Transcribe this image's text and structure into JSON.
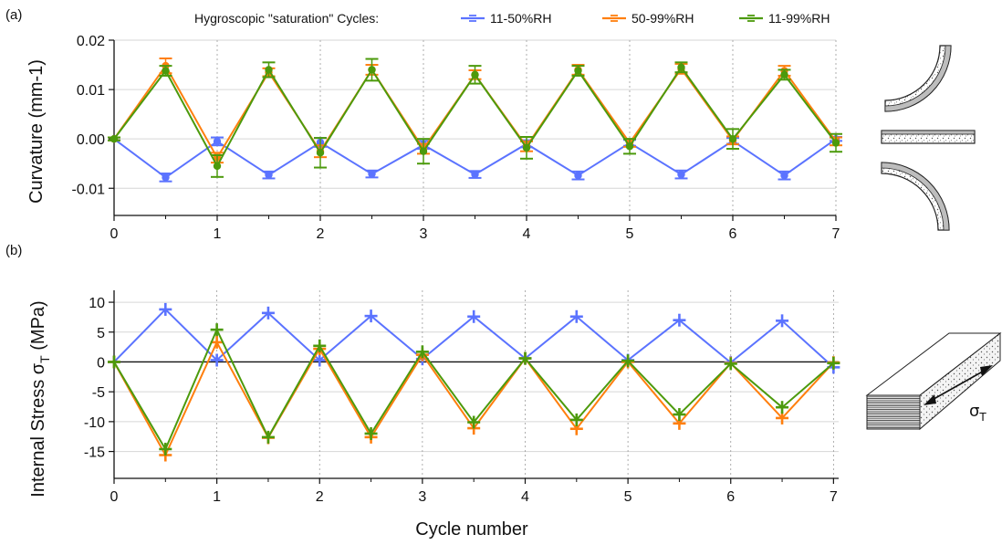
{
  "figure": {
    "panel_a_label": "(a)",
    "panel_b_label": "(b)",
    "legend_title": "Hygroscopic \"saturation\" Cycles:",
    "schematic_b_label": "σ",
    "schematic_b_subscript": "T"
  },
  "colors": {
    "11-50%RH": "#5b73ff",
    "50-99%RH": "#ff7f0e",
    "11-99%RH": "#4c9a0c"
  },
  "chart_data": [
    {
      "type": "line",
      "panel": "a",
      "xlabel": "Cycle number",
      "ylabel": "Curvature (mm-1)",
      "xlim": [
        0,
        7
      ],
      "ylim": [
        -0.0155,
        0.02
      ],
      "xticks": [
        "0",
        "1",
        "2",
        "3",
        "4",
        "5",
        "6",
        "7"
      ],
      "yticks": [
        "0.02",
        "0.01",
        "0.00",
        "-0.01"
      ],
      "ytick_values": [
        0.02,
        0.01,
        0.0,
        -0.01
      ],
      "grid": "vertical dotted at integer cycles, horizontal at y ticks",
      "legend": "top",
      "x": [
        0,
        0.5,
        1,
        1.5,
        2,
        2.5,
        3,
        3.5,
        4,
        4.5,
        5,
        5.5,
        6,
        6.5,
        7
      ],
      "series": [
        {
          "name": "11-50%RH",
          "values": [
            0,
            -0.0078,
            -0.0005,
            -0.0073,
            -0.0007,
            -0.0071,
            -0.0012,
            -0.0072,
            -0.001,
            -0.0074,
            -0.0008,
            -0.0072,
            -0.0004,
            -0.0074,
            0
          ],
          "errors": [
            0.0003,
            0.0008,
            0.0008,
            0.0007,
            0.0009,
            0.0007,
            0.0008,
            0.0007,
            0.0007,
            0.0008,
            0.0006,
            0.0008,
            0.0006,
            0.0008,
            0.0004
          ]
        },
        {
          "name": "50-99%RH",
          "values": [
            0,
            0.0148,
            -0.0038,
            0.0135,
            -0.0025,
            0.014,
            -0.002,
            0.013,
            -0.0015,
            0.014,
            -0.0008,
            0.0142,
            -0.0003,
            0.0138,
            -0.0005
          ],
          "errors": [
            0.0003,
            0.0015,
            0.001,
            0.0008,
            0.0012,
            0.001,
            0.001,
            0.0009,
            0.001,
            0.001,
            0.0008,
            0.001,
            0.0008,
            0.001,
            0.0008
          ]
        },
        {
          "name": "11-99%RH",
          "values": [
            0,
            0.0138,
            -0.0055,
            0.014,
            -0.0028,
            0.014,
            -0.0025,
            0.013,
            -0.0018,
            0.0138,
            -0.0015,
            0.0145,
            0.0,
            0.013,
            -0.0008
          ],
          "errors": [
            0.0003,
            0.001,
            0.0022,
            0.0015,
            0.003,
            0.0022,
            0.0025,
            0.0018,
            0.0022,
            0.001,
            0.0015,
            0.001,
            0.002,
            0.001,
            0.0018
          ]
        }
      ]
    },
    {
      "type": "line",
      "panel": "b",
      "xlabel": "Cycle number",
      "ylabel": "Internal Stress σ",
      "ylabel_subscript": "T",
      "ylabel_unit": " (MPa)",
      "xlim": [
        0,
        7.05
      ],
      "ylim": [
        -19.5,
        12
      ],
      "xticks": [
        "0",
        "1",
        "2",
        "3",
        "4",
        "5",
        "6",
        "7"
      ],
      "yticks": [
        "10",
        "5",
        "0",
        "-5",
        "-10",
        "-15"
      ],
      "ytick_values": [
        10,
        5,
        0,
        -5,
        -10,
        -15
      ],
      "grid": "vertical dotted at integer cycles, horizontal at y ticks, solid zero line",
      "x": [
        0,
        0.5,
        1,
        1.5,
        2,
        2.5,
        3,
        3.5,
        4,
        4.5,
        5,
        5.5,
        6,
        6.5,
        7
      ],
      "series": [
        {
          "name": "11-50%RH",
          "values": [
            0,
            8.8,
            0.3,
            8.2,
            0.3,
            7.7,
            0.5,
            7.6,
            0.6,
            7.6,
            0.3,
            7.0,
            -0.1,
            6.9,
            -0.9
          ]
        },
        {
          "name": "50-99%RH",
          "values": [
            0,
            -15.6,
            3.3,
            -12.7,
            2.2,
            -12.6,
            1.2,
            -11.1,
            0.6,
            -11.2,
            0.0,
            -10.3,
            -0.2,
            -9.4,
            -0.1
          ]
        },
        {
          "name": "11-99%RH",
          "values": [
            0,
            -14.6,
            5.4,
            -12.6,
            2.7,
            -12.0,
            1.7,
            -10.1,
            0.6,
            -9.7,
            0.2,
            -8.8,
            -0.3,
            -7.6,
            -0.2
          ]
        }
      ]
    }
  ]
}
